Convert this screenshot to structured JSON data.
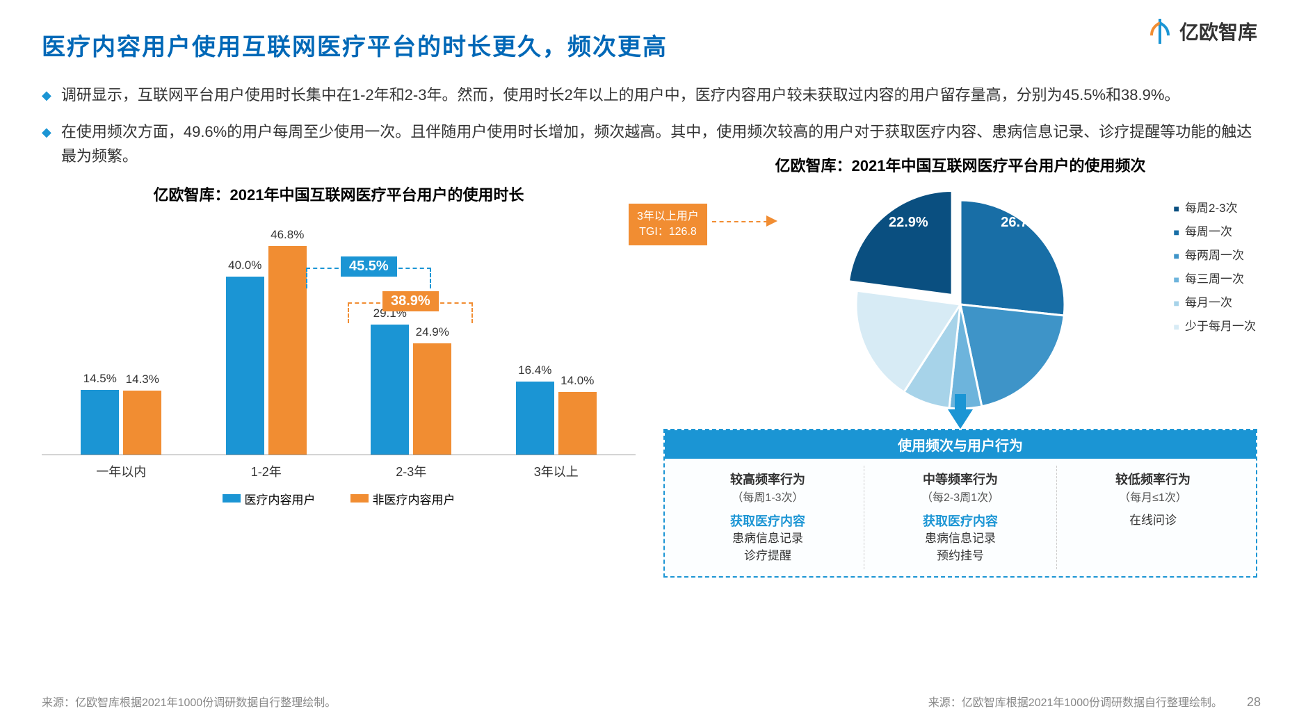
{
  "title": "医疗内容用户使用互联网医疗平台的时长更久，频次更高",
  "logo_text": "亿欧智库",
  "bullets": [
    "调研显示，互联网平台用户使用时长集中在1-2年和2-3年。然而，使用时长2年以上的用户中，医疗内容用户较未获取过内容的用户留存量高，分别为45.5%和38.9%。",
    "在使用频次方面，49.6%的用户每周至少使用一次。且伴随用户使用时长增加，频次越高。其中，使用频次较高的用户对于获取医疗内容、患病信息记录、诊疗提醒等功能的触达最为频繁。"
  ],
  "bar_chart": {
    "title": "亿欧智库：2021年中国互联网医疗平台用户的使用时长",
    "categories": [
      "一年以内",
      "1-2年",
      "2-3年",
      "3年以上"
    ],
    "series1": {
      "name": "医疗内容用户",
      "color": "#1b95d4",
      "values": [
        14.5,
        40.0,
        29.1,
        16.4
      ]
    },
    "series2": {
      "name": "非医疗内容用户",
      "color": "#f18d32",
      "values": [
        14.3,
        46.8,
        24.9,
        14.0
      ]
    },
    "max": 50,
    "annotation1": {
      "label": "45.5%",
      "color": "#1b95d4"
    },
    "annotation2": {
      "label": "38.9%",
      "color": "#f18d32"
    }
  },
  "pie_chart": {
    "title": "亿欧智库：2021年中国互联网医疗平台用户的使用频次",
    "slices": [
      {
        "label": "每周2-3次",
        "value": 22.9,
        "color": "#0a4f80"
      },
      {
        "label": "每周一次",
        "value": 26.7,
        "color": "#186ea6"
      },
      {
        "label": "每两周一次",
        "value": 20.0,
        "color": "#3e94c8"
      },
      {
        "label": "每三周一次",
        "value": 5.0,
        "color": "#6db4dc"
      },
      {
        "label": "每月一次",
        "value": 7.4,
        "color": "#a7d3e9"
      },
      {
        "label": "少于每月一次",
        "value": 18.0,
        "color": "#d7ebf5"
      }
    ],
    "visible_labels": [
      "22.9%",
      "26.7%"
    ],
    "callout": "3年以上用户\nTGI：126.8"
  },
  "behavior": {
    "head": "使用频次与用户行为",
    "cols": [
      {
        "title": "较高频率行为",
        "sub": "（每周1-3次）",
        "highlight": "获取医疗内容",
        "lines": [
          "患病信息记录",
          "诊疗提醒"
        ]
      },
      {
        "title": "中等频率行为",
        "sub": "（每2-3周1次）",
        "highlight": "获取医疗内容",
        "lines": [
          "患病信息记录",
          "预约挂号"
        ]
      },
      {
        "title": "较低频率行为",
        "sub": "（每月≤1次）",
        "highlight": "",
        "lines": [
          "在线问诊"
        ]
      }
    ]
  },
  "source_left": "来源：亿欧智库根据2021年1000份调研数据自行整理绘制。",
  "source_right": "来源：亿欧智库根据2021年1000份调研数据自行整理绘制。",
  "page": "28"
}
